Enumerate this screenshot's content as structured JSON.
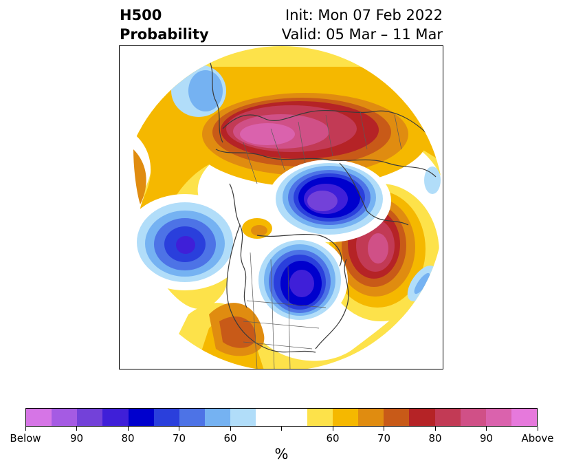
{
  "header": {
    "title_line1": "H500",
    "title_line2": "Probability",
    "init": "Init: Mon 07 Feb 2022",
    "valid": "Valid: 05 Mar – 11 Mar"
  },
  "colorbar": {
    "label": "%",
    "colors": [
      "#d675e6",
      "#a55be3",
      "#7341d9",
      "#3f1fd8",
      "#0000cd",
      "#2a3fdc",
      "#4d73e6",
      "#75b2f2",
      "#b1ddf9",
      "#ffffff",
      "#ffffff",
      "#fde24a",
      "#f5b800",
      "#e08c10",
      "#c85a18",
      "#b52326",
      "#c23a55",
      "#d05087",
      "#da62ad",
      "#e679dc"
    ],
    "tick_labels": [
      "Below",
      "90",
      "80",
      "70",
      "60",
      "",
      "60",
      "70",
      "80",
      "90",
      "Above"
    ]
  },
  "map": {
    "regions": [
      {
        "name": "above-normal-arctic-russia",
        "category": "above",
        "peak_level": "90"
      },
      {
        "name": "below-normal-north-pole",
        "category": "below",
        "peak_level": "90"
      },
      {
        "name": "below-normal-hudson-bay",
        "category": "below",
        "peak_level": "90"
      },
      {
        "name": "below-normal-north-pacific",
        "category": "below",
        "peak_level": "80"
      },
      {
        "name": "above-normal-north-atlantic",
        "category": "above",
        "peak_level": "90"
      },
      {
        "name": "above-normal-southwest-us",
        "category": "above",
        "peak_level": "70"
      }
    ]
  }
}
